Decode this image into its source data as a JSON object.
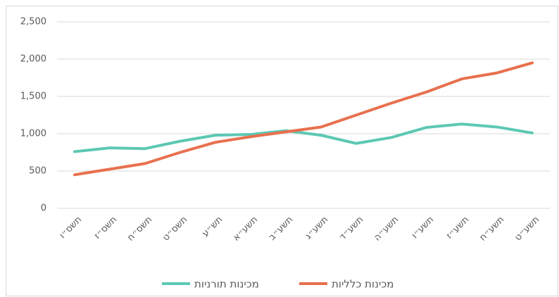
{
  "chart_data": {
    "type": "line",
    "categories": [
      "תשס״ו",
      "תשס״ז",
      "תשס״ח",
      "תשס״ט",
      "תש״ע",
      "תשע״א",
      "תשע״ב",
      "תשע״ג",
      "תשע״ד",
      "תשע״ה",
      "תשע״ו",
      "תשע״ז",
      "תשע״ח",
      "תשע״ט"
    ],
    "series": [
      {
        "name": "מכינות תורניות",
        "color": "#5cc8b3",
        "values": [
          760,
          810,
          800,
          900,
          980,
          990,
          1040,
          980,
          870,
          950,
          1085,
          1130,
          1090,
          1010
        ]
      },
      {
        "name": "מכינות כלליות",
        "color": "#e8704e",
        "values": [
          450,
          525,
          600,
          750,
          885,
          960,
          1025,
          1090,
          1250,
          1410,
          1560,
          1735,
          1815,
          1950
        ]
      }
    ],
    "ylim": [
      0,
      2500
    ],
    "yticks": [
      0,
      500,
      {
        "value": 1000,
        "label": "1,000"
      },
      {
        "value": 1500,
        "label": "1,500"
      },
      {
        "value": 2000,
        "label": "2,000"
      },
      {
        "value": 2500,
        "label": "2,500"
      }
    ],
    "grid": true,
    "legend": "bottom"
  }
}
